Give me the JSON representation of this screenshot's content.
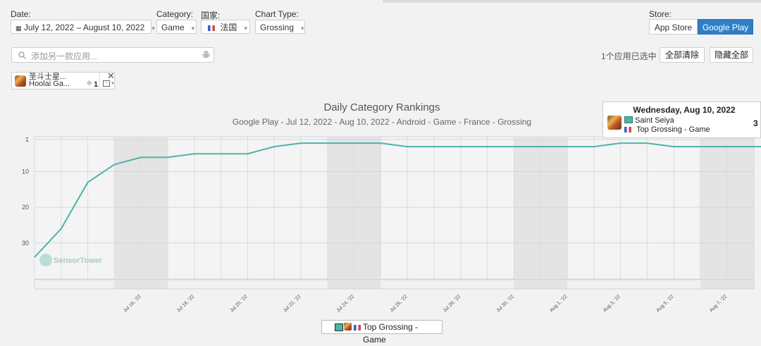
{
  "filters": {
    "date_label": "Date:",
    "date_value": "July 12, 2022 – August 10, 2022",
    "category_label": "Category:",
    "category_value": "Game",
    "country_label": "国家:",
    "country_value": "法国",
    "chart_type_label": "Chart Type:",
    "chart_type_value": "Grossing",
    "store_label": "Store:",
    "store_options": [
      "App Store",
      "Google Play"
    ],
    "store_selected": "Google Play"
  },
  "search": {
    "placeholder": "添加另一款应用..."
  },
  "selection": {
    "count_text": "1个应用已选中",
    "clear_all": "全部清除",
    "hide_all": "隐藏全部"
  },
  "app_tag": {
    "name": "圣斗士星...",
    "publisher": "Hoolai Ga...",
    "number": "1"
  },
  "tooltip": {
    "date": "Wednesday, Aug 10, 2022",
    "app": "Saint Seiya",
    "category": "Top Grossing - Game",
    "value": "3"
  },
  "legend": {
    "label": "Top Grossing - Game"
  },
  "watermark": "SensorTower",
  "colors": {
    "line": "#4db3a8",
    "accent": "#2f7fc6",
    "weekend": "#e4e4e4"
  },
  "chart_data": {
    "type": "line",
    "title": "Daily Category Rankings",
    "subtitle": "Google Play - Jul 12, 2022 - Aug 10, 2022 - Android - Game - France - Grossing",
    "y_reversed": true,
    "ylim": [
      1,
      34
    ],
    "y_ticks": [
      1,
      10,
      20,
      30
    ],
    "x_tick_labels": [
      "Jul 16, '22",
      "Jul 18, '22",
      "Jul 20, '22",
      "Jul 22, '22",
      "Jul 24, '22",
      "Jul 26, '22",
      "Jul 28, '22",
      "Jul 30, '22",
      "Aug 1, '22",
      "Aug 3, '22",
      "Aug 5, '22",
      "Aug 7, '22"
    ],
    "x_tick_days": [
      4,
      6,
      8,
      10,
      12,
      14,
      16,
      18,
      20,
      22,
      24,
      26
    ],
    "weekend_bands": [
      [
        3,
        5
      ],
      [
        11,
        13
      ],
      [
        18,
        20
      ],
      [
        25,
        27
      ]
    ],
    "series": [
      {
        "name": "Top Grossing - Game",
        "days": [
          0,
          1,
          2,
          3,
          4,
          5,
          6,
          7,
          8,
          9,
          10,
          11,
          12,
          13,
          14,
          15,
          16,
          17,
          18,
          19,
          20,
          21,
          22,
          23,
          24,
          25,
          26,
          27,
          28
        ],
        "values": [
          34,
          26,
          13,
          8,
          6,
          6,
          5,
          5,
          5,
          3,
          2,
          2,
          2,
          2,
          3,
          3,
          3,
          3,
          3,
          3,
          3,
          3,
          2,
          2,
          3,
          3,
          3,
          3,
          3
        ]
      }
    ]
  }
}
